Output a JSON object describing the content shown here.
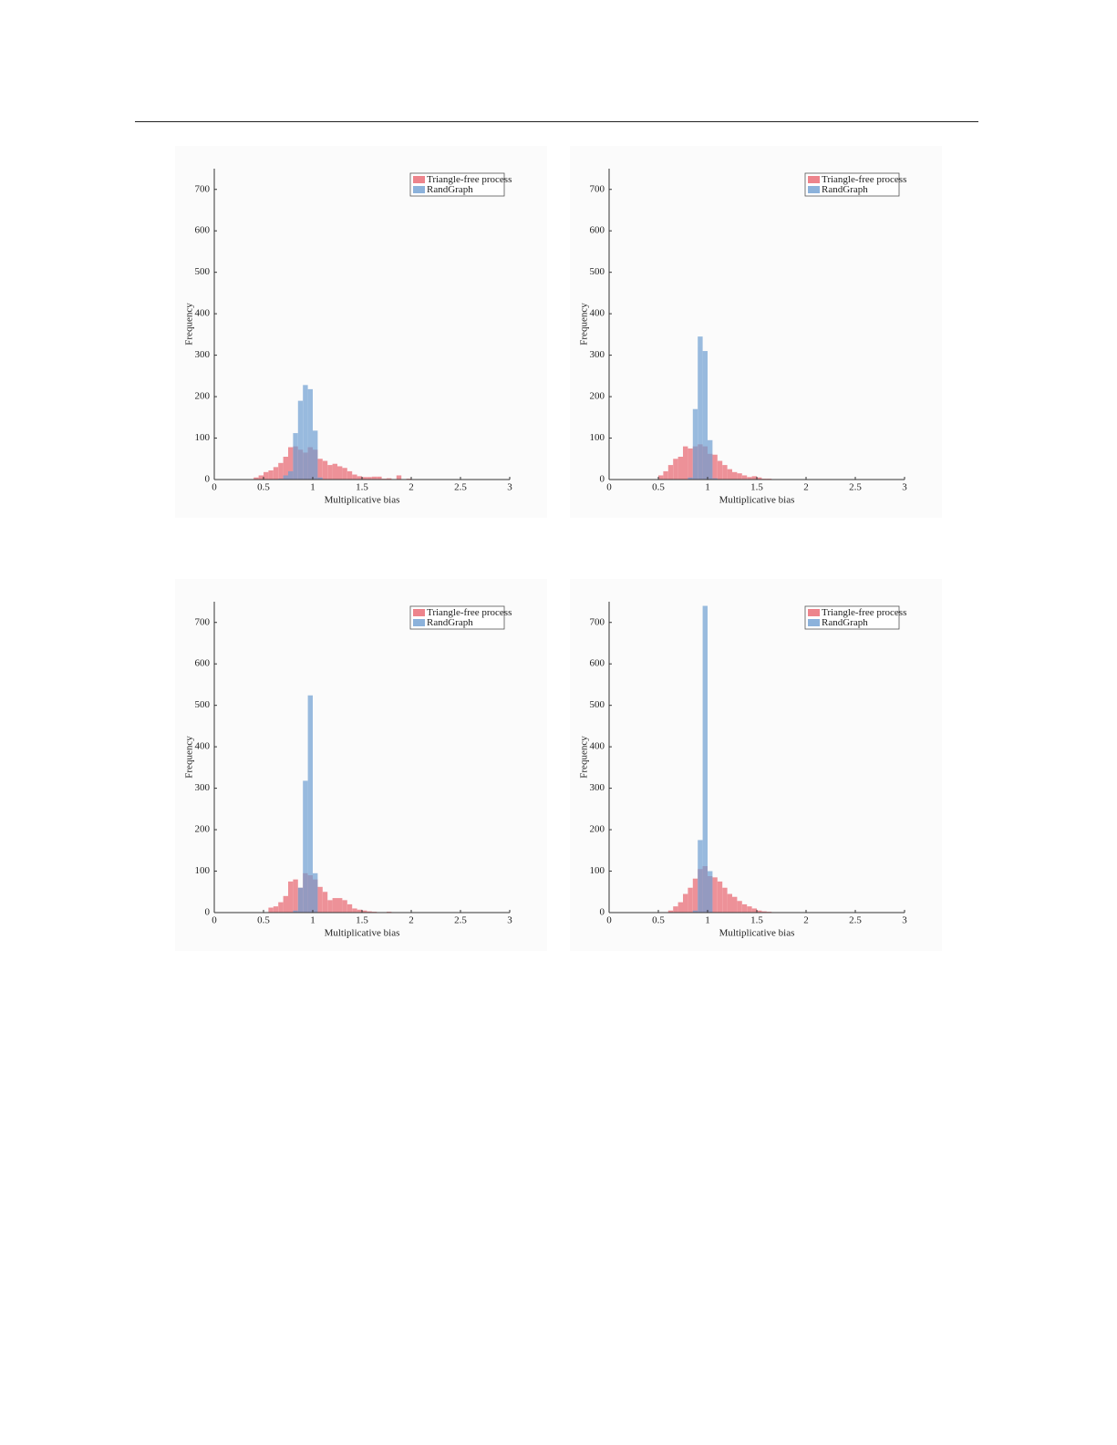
{
  "chart_data": [
    {
      "type": "histogram",
      "x_label": "Multiplicative bias",
      "y_label": "Frequency",
      "xlim": [
        0,
        3
      ],
      "xticks": [
        0,
        0.5,
        1,
        1.5,
        2,
        2.5,
        3
      ],
      "ylim": [
        0,
        750
      ],
      "yticks": [
        0,
        100,
        200,
        300,
        400,
        500,
        600,
        700
      ],
      "legend": "upper right",
      "bins": [
        0.4,
        0.45,
        0.5,
        0.55,
        0.6,
        0.65,
        0.7,
        0.75,
        0.8,
        0.85,
        0.9,
        0.95,
        1,
        1.05,
        1.1,
        1.15,
        1.2,
        1.25,
        1.3,
        1.35,
        1.4,
        1.45,
        1.5,
        1.55,
        1.6,
        1.65,
        1.7,
        1.75,
        1.8,
        1.85,
        1.9,
        1.95,
        2,
        2.05,
        2.1,
        2.15,
        2.2,
        2.25,
        2.3,
        2.35,
        2.4
      ],
      "series": [
        {
          "name": "Triangle-free process",
          "color": "#e8656f",
          "values": [
            5,
            10,
            18,
            22,
            30,
            40,
            55,
            78,
            80,
            72,
            65,
            78,
            72,
            50,
            45,
            35,
            38,
            32,
            28,
            20,
            12,
            8,
            6,
            6,
            7,
            7,
            2,
            3,
            0,
            10,
            1,
            2,
            1,
            1,
            1,
            1,
            1,
            0,
            1,
            0
          ]
        },
        {
          "name": "RandGraph",
          "color": "#6f9fd2",
          "values": [
            0,
            0,
            0,
            0,
            0,
            2,
            10,
            20,
            112,
            190,
            228,
            218,
            118,
            5,
            0,
            0,
            0,
            0,
            0,
            0,
            0,
            0,
            0,
            0,
            0,
            0,
            0,
            0,
            0,
            0,
            0,
            0,
            0,
            0,
            0,
            0,
            0,
            0,
            0,
            0
          ]
        }
      ]
    },
    {
      "type": "histogram",
      "x_label": "Multiplicative bias",
      "y_label": "Frequency",
      "xlim": [
        0,
        3
      ],
      "xticks": [
        0,
        0.5,
        1,
        1.5,
        2,
        2.5,
        3
      ],
      "ylim": [
        0,
        750
      ],
      "yticks": [
        0,
        100,
        200,
        300,
        400,
        500,
        600,
        700
      ],
      "legend": "upper right",
      "bins": [
        0.4,
        0.45,
        0.5,
        0.55,
        0.6,
        0.65,
        0.7,
        0.75,
        0.8,
        0.85,
        0.9,
        0.95,
        1,
        1.05,
        1.1,
        1.15,
        1.2,
        1.25,
        1.3,
        1.35,
        1.4,
        1.45,
        1.5,
        1.55,
        1.6,
        1.65,
        1.7,
        1.75,
        1.8,
        1.85,
        1.9,
        1.95,
        2,
        2.05,
        2.1,
        2.15,
        2.2,
        2.25,
        2.3,
        2.35,
        2.4
      ],
      "series": [
        {
          "name": "Triangle-free process",
          "color": "#e8656f",
          "values": [
            0,
            0,
            10,
            20,
            35,
            50,
            55,
            80,
            75,
            80,
            85,
            80,
            62,
            60,
            45,
            35,
            25,
            18,
            15,
            10,
            6,
            8,
            5,
            2,
            2,
            1,
            1,
            1,
            0,
            0,
            0,
            0,
            0,
            0,
            0,
            0,
            0,
            0,
            0,
            0
          ]
        },
        {
          "name": "RandGraph",
          "color": "#6f9fd2",
          "values": [
            0,
            0,
            0,
            0,
            0,
            0,
            0,
            0,
            5,
            170,
            345,
            310,
            95,
            3,
            0,
            0,
            0,
            0,
            0,
            0,
            0,
            0,
            0,
            0,
            0,
            0,
            0,
            0,
            0,
            0,
            0,
            0,
            0,
            0,
            0,
            0,
            0,
            0,
            0,
            0
          ]
        }
      ]
    },
    {
      "type": "histogram",
      "x_label": "Multiplicative bias",
      "y_label": "Frequency",
      "xlim": [
        0,
        3
      ],
      "xticks": [
        0,
        0.5,
        1,
        1.5,
        2,
        2.5,
        3
      ],
      "ylim": [
        0,
        750
      ],
      "yticks": [
        0,
        100,
        200,
        300,
        400,
        500,
        600,
        700
      ],
      "legend": "upper right",
      "bins": [
        0.4,
        0.45,
        0.5,
        0.55,
        0.6,
        0.65,
        0.7,
        0.75,
        0.8,
        0.85,
        0.9,
        0.95,
        1,
        1.05,
        1.1,
        1.15,
        1.2,
        1.25,
        1.3,
        1.35,
        1.4,
        1.45,
        1.5,
        1.55,
        1.6,
        1.65,
        1.7,
        1.75,
        1.8,
        1.85,
        1.9,
        1.95,
        2,
        2.05,
        2.1,
        2.15,
        2.2,
        2.25,
        2.3,
        2.35,
        2.4
      ],
      "series": [
        {
          "name": "Triangle-free process",
          "color": "#e8656f",
          "values": [
            0,
            0,
            0,
            12,
            15,
            25,
            40,
            75,
            80,
            60,
            95,
            90,
            80,
            62,
            50,
            30,
            35,
            35,
            30,
            20,
            10,
            7,
            5,
            3,
            2,
            1,
            1,
            2,
            1,
            0,
            0,
            0,
            0,
            0,
            0,
            0,
            0,
            0,
            0,
            0
          ]
        },
        {
          "name": "RandGraph",
          "color": "#6f9fd2",
          "values": [
            0,
            0,
            0,
            0,
            0,
            0,
            0,
            0,
            5,
            60,
            318,
            524,
            95,
            0,
            0,
            0,
            0,
            0,
            0,
            0,
            0,
            0,
            0,
            0,
            0,
            0,
            0,
            0,
            0,
            0,
            0,
            0,
            0,
            0,
            0,
            0,
            0,
            0,
            0,
            0
          ]
        }
      ]
    },
    {
      "type": "histogram",
      "x_label": "Multiplicative bias",
      "y_label": "Frequency",
      "xlim": [
        0,
        3
      ],
      "xticks": [
        0,
        0.5,
        1,
        1.5,
        2,
        2.5,
        3
      ],
      "ylim": [
        0,
        750
      ],
      "yticks": [
        0,
        100,
        200,
        300,
        400,
        500,
        600,
        700
      ],
      "legend": "upper right",
      "bins": [
        0.4,
        0.45,
        0.5,
        0.55,
        0.6,
        0.65,
        0.7,
        0.75,
        0.8,
        0.85,
        0.9,
        0.95,
        1,
        1.05,
        1.1,
        1.15,
        1.2,
        1.25,
        1.3,
        1.35,
        1.4,
        1.45,
        1.5,
        1.55,
        1.6,
        1.65,
        1.7,
        1.75,
        1.8,
        1.85,
        1.9,
        1.95,
        2,
        2.05,
        2.1,
        2.15,
        2.2,
        2.25,
        2.3,
        2.35,
        2.4
      ],
      "series": [
        {
          "name": "Triangle-free process",
          "color": "#e8656f",
          "values": [
            0,
            0,
            0,
            0,
            5,
            15,
            25,
            45,
            60,
            82,
            105,
            112,
            88,
            85,
            75,
            60,
            45,
            38,
            28,
            20,
            15,
            10,
            5,
            3,
            2,
            1,
            1,
            0,
            0,
            0,
            0,
            0,
            0,
            0,
            0,
            0,
            0,
            0,
            0,
            0
          ]
        },
        {
          "name": "RandGraph",
          "color": "#6f9fd2",
          "values": [
            0,
            0,
            0,
            0,
            0,
            0,
            0,
            0,
            0,
            5,
            175,
            740,
            100,
            0,
            0,
            0,
            0,
            0,
            0,
            0,
            0,
            0,
            0,
            0,
            0,
            0,
            0,
            0,
            0,
            0,
            0,
            0,
            0,
            0,
            0,
            0,
            0,
            0,
            0,
            0
          ]
        }
      ]
    }
  ]
}
